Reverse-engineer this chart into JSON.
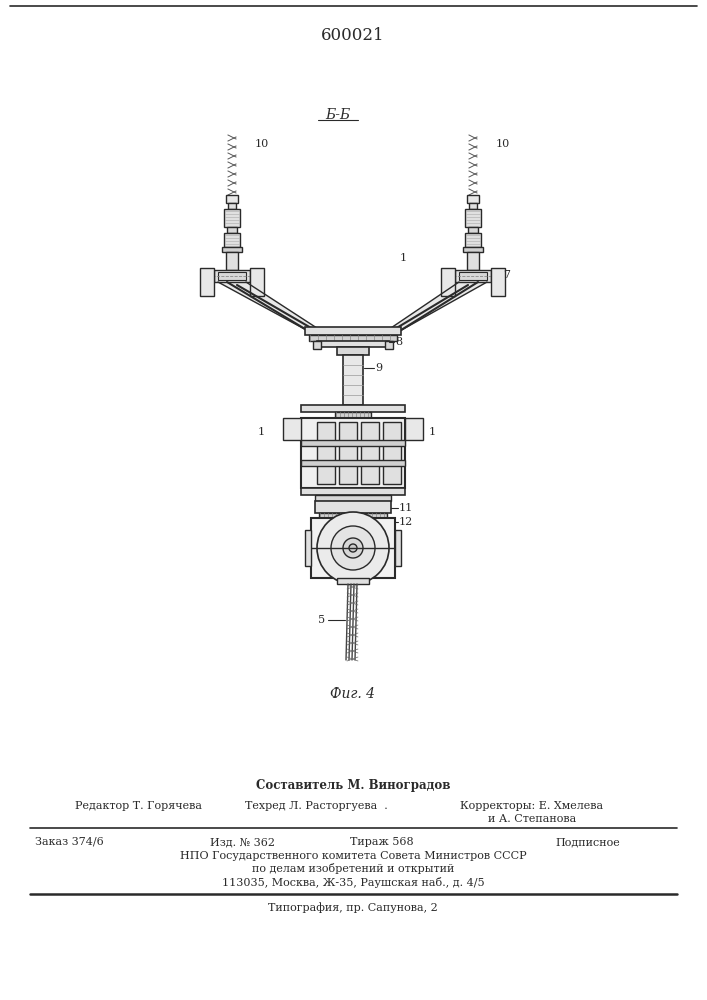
{
  "patent_number": "600021",
  "figure_label": "Фиг. 4",
  "section_label": "Б-Б",
  "bg_color": "#ffffff",
  "line_color": "#2a2a2a",
  "footer": {
    "compiler": "Составитель М. Виноградов",
    "editor": "Редактор Т. Горячева",
    "techred": "Техред Л. Расторгуева",
    "correctors": "Корректоры: Е. Хмелева",
    "correctors2": "и А. Степанова",
    "order": "Заказ 374/6",
    "edition": "Изд. № 362",
    "circulation": "Тираж 568",
    "subscription": "Подписное",
    "org": "НПО Государственного комитета Совета Министров СССР",
    "org2": "по делам изобретений и открытий",
    "address": "113035, Москва, Ж-35, Раушская наб., д. 4/5",
    "print": "Типография, пр. Сапунова, 2"
  }
}
